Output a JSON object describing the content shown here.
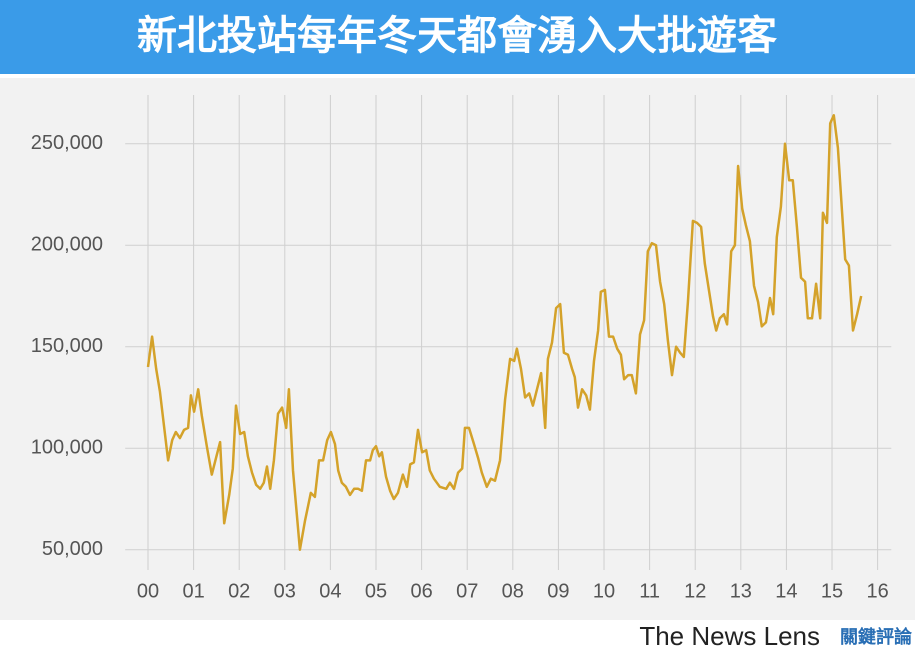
{
  "chart_data": {
    "type": "line",
    "title": "新北投站每年冬天都會湧入大批遊客",
    "color": "#d4a22a",
    "grid": true,
    "x": [
      0,
      0.09,
      0.18,
      0.26,
      0.35,
      0.44,
      0.53,
      0.61,
      0.7,
      0.79,
      0.88,
      0.94,
      1.01,
      1.1,
      1.18,
      1.29,
      1.4,
      1.49,
      1.58,
      1.67,
      1.78,
      1.86,
      1.93,
      2.02,
      2.11,
      2.19,
      2.28,
      2.37,
      2.46,
      2.54,
      2.61,
      2.68,
      2.76,
      2.85,
      2.94,
      3.03,
      3.09,
      3.18,
      3.33,
      3.44,
      3.57,
      3.66,
      3.75,
      3.84,
      3.93,
      4.01,
      4.1,
      4.17,
      4.25,
      4.34,
      4.43,
      4.52,
      4.61,
      4.69,
      4.78,
      4.87,
      4.93,
      5,
      5.07,
      5.13,
      5.22,
      5.31,
      5.39,
      5.48,
      5.59,
      5.68,
      5.75,
      5.83,
      5.92,
      6.01,
      6.1,
      6.18,
      6.27,
      6.4,
      6.54,
      6.62,
      6.71,
      6.8,
      6.89,
      6.95,
      7.04,
      7.15,
      7.24,
      7.32,
      7.43,
      7.52,
      7.61,
      7.72,
      7.83,
      7.94,
      8.03,
      8.09,
      8.18,
      8.27,
      8.36,
      8.44,
      8.53,
      8.62,
      8.71,
      8.77,
      8.86,
      8.95,
      9.04,
      9.12,
      9.21,
      9.3,
      9.36,
      9.43,
      9.52,
      9.61,
      9.69,
      9.78,
      9.87,
      9.93,
      10.02,
      10.11,
      10.2,
      10.29,
      10.37,
      10.44,
      10.53,
      10.61,
      10.7,
      10.79,
      10.88,
      10.96,
      11.05,
      11.14,
      11.23,
      11.32,
      11.4,
      11.49,
      11.58,
      11.67,
      11.75,
      11.84,
      11.95,
      12.04,
      12.13,
      12.21,
      12.3,
      12.39,
      12.46,
      12.54,
      12.63,
      12.7,
      12.79,
      12.87,
      12.94,
      13.03,
      13.11,
      13.2,
      13.29,
      13.38,
      13.46,
      13.55,
      13.64,
      13.71,
      13.79,
      13.88,
      13.97,
      14.06,
      14.14,
      14.23,
      14.32,
      14.41,
      14.47,
      14.56,
      14.65,
      14.74,
      14.8,
      14.89,
      14.96,
      15.04,
      15.13,
      15.22,
      15.29,
      15.37,
      15.46,
      15.55,
      15.64
    ],
    "values": [
      140000,
      155000,
      139000,
      128000,
      111000,
      94000,
      104000,
      108000,
      105000,
      109000,
      110000,
      126000,
      118000,
      129000,
      116000,
      101000,
      87000,
      95000,
      103000,
      63000,
      77000,
      90000,
      121000,
      107000,
      108000,
      96000,
      88000,
      82000,
      80000,
      83000,
      91000,
      80000,
      94000,
      117000,
      120000,
      110000,
      129000,
      89000,
      50000,
      64000,
      78000,
      76000,
      94000,
      94000,
      104000,
      108000,
      102000,
      89000,
      83000,
      81000,
      77000,
      80000,
      80000,
      79000,
      94000,
      94000,
      99000,
      101000,
      96000,
      98000,
      86000,
      79000,
      75000,
      78000,
      87000,
      81000,
      92000,
      93000,
      109000,
      98000,
      99000,
      89000,
      85000,
      81000,
      80000,
      83000,
      80000,
      88000,
      90000,
      110000,
      110000,
      102000,
      95000,
      88000,
      81000,
      85000,
      84000,
      94000,
      124000,
      144000,
      143000,
      149000,
      139000,
      125000,
      127000,
      121000,
      129000,
      137000,
      110000,
      144000,
      152000,
      169000,
      171000,
      147000,
      146000,
      139000,
      135000,
      120000,
      129000,
      126000,
      119000,
      143000,
      158000,
      177000,
      178000,
      155000,
      155000,
      149000,
      146000,
      134000,
      136000,
      136000,
      127000,
      156000,
      163000,
      197000,
      201000,
      200000,
      182000,
      171000,
      153000,
      136000,
      150000,
      147000,
      145000,
      172000,
      212000,
      211000,
      209000,
      191000,
      178000,
      165000,
      158000,
      164000,
      166000,
      161000,
      197000,
      200000,
      239000,
      218000,
      210000,
      202000,
      180000,
      172000,
      160000,
      162000,
      174000,
      166000,
      204000,
      219000,
      250000,
      232000,
      232000,
      209000,
      184000,
      182000,
      164000,
      164000,
      181000,
      164000,
      216000,
      211000,
      260000,
      264000,
      248000,
      216000,
      193000,
      190000,
      158000,
      166000,
      175000
    ],
    "xlim": [
      -0.5,
      16.3
    ],
    "xticks": [
      {
        "value": 0,
        "label": "00"
      },
      {
        "value": 1,
        "label": "01"
      },
      {
        "value": 2,
        "label": "02"
      },
      {
        "value": 3,
        "label": "03"
      },
      {
        "value": 4,
        "label": "04"
      },
      {
        "value": 5,
        "label": "05"
      },
      {
        "value": 6,
        "label": "06"
      },
      {
        "value": 7,
        "label": "07"
      },
      {
        "value": 8,
        "label": "08"
      },
      {
        "value": 9,
        "label": "09"
      },
      10,
      11,
      12,
      13,
      14,
      15,
      16
    ],
    "ylim": [
      40000,
      274000
    ],
    "yticks": [
      {
        "value": 50000,
        "label": "50,000"
      },
      {
        "value": 100000,
        "label": "100,000"
      },
      {
        "value": 150000,
        "label": "150,000"
      },
      {
        "value": 200000,
        "label": "200,000"
      },
      {
        "value": 250000,
        "label": "250,000"
      }
    ]
  },
  "footer": {
    "brand": "The News Lens",
    "brand_zh": "關鍵評論"
  }
}
